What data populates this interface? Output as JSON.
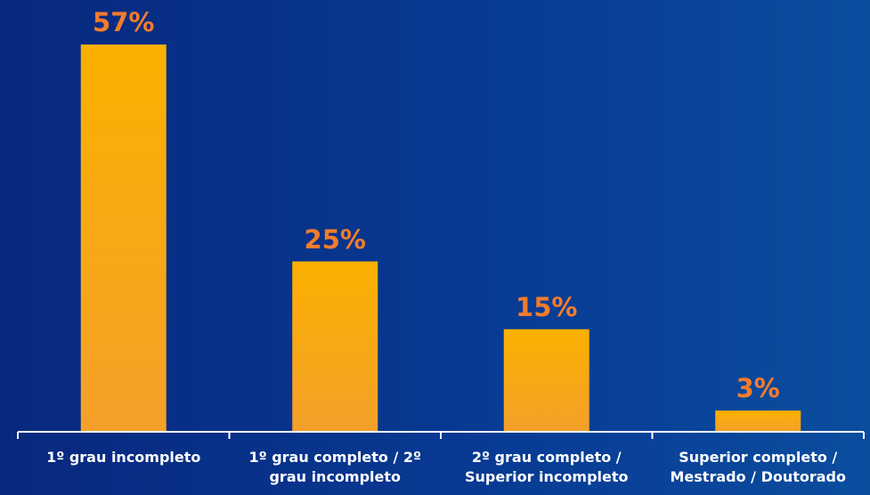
{
  "chart_data": {
    "type": "bar",
    "categories": [
      "1º grau incompleto",
      "1º grau completo / 2º grau incompleto",
      "2º grau completo / Superior incompleto",
      "Superior completo / Mestrado / Doutorado"
    ],
    "values": [
      57,
      25,
      15,
      3
    ],
    "value_labels": [
      "57%",
      "25%",
      "15%",
      "3%"
    ],
    "color": "#f9ac0a"
  }
}
